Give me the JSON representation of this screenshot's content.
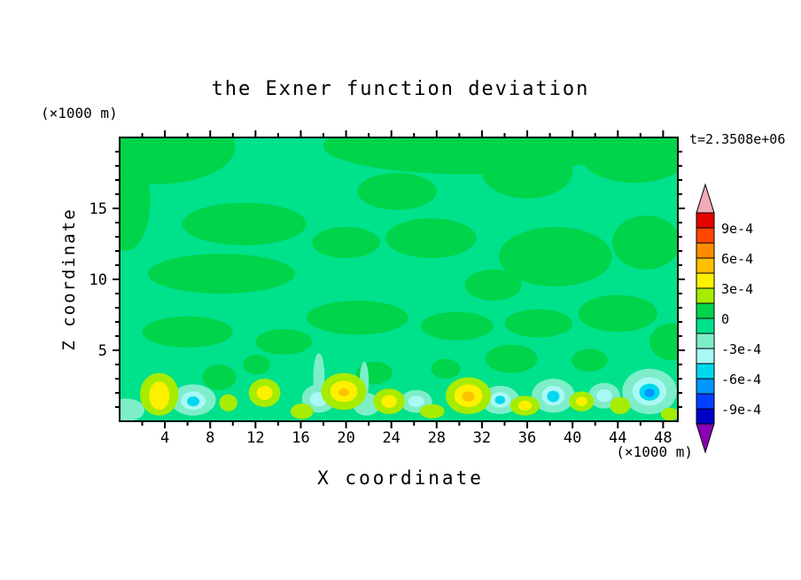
{
  "chart_data": {
    "type": "contour",
    "title": "the Exner function deviation",
    "xlabel": "X coordinate",
    "ylabel": "Z coordinate",
    "x_units": "(×1000 m)",
    "y_units": "(×1000 m)",
    "time_label": "t=2.3508e+06",
    "xlim": [
      0,
      49.3
    ],
    "ylim": [
      0,
      20
    ],
    "x_ticks": [
      4,
      8,
      12,
      16,
      20,
      24,
      28,
      32,
      36,
      40,
      44,
      48
    ],
    "x_minor_step": 2,
    "y_ticks": [
      5,
      10,
      15
    ],
    "y_minor_step": 1,
    "colorbar": {
      "labels": [
        "9e-4",
        "6e-4",
        "3e-4",
        "0",
        "-3e-4",
        "-6e-4",
        "-9e-4"
      ],
      "level_values": [
        0.0009,
        0.0006,
        0.0003,
        0,
        -0.0003,
        -0.0006,
        -0.0009
      ],
      "contour_interval": 0.00015,
      "colors": [
        "#f0aab9",
        "#e60000",
        "#ff4600",
        "#ff8c00",
        "#ffc000",
        "#fdf000",
        "#a6ec00",
        "#00d44a",
        "#00e18c",
        "#7deec9",
        "#aaf8f4",
        "#00d8f0",
        "#0096ff",
        "#0041ff",
        "#0000c8",
        "#8a00b4"
      ]
    },
    "palette": {
      "bg": "#00e18c",
      "green": "#00d44a",
      "chartreuse": "#a6ec00",
      "yellow": "#fdf000",
      "amber": "#ffc000",
      "aqua": "#7deec9",
      "pale_cyan": "#aaf8f4",
      "cyan": "#00d8f0",
      "azure": "#0096ff"
    },
    "background_color": "bg",
    "features": [
      {
        "x": 3.2,
        "y": 19.3,
        "rx": 7.0,
        "ry": 2.6,
        "color": "green"
      },
      {
        "x": 0.5,
        "y": 15.5,
        "rx": 2.2,
        "ry": 3.5,
        "color": "green"
      },
      {
        "x": 31,
        "y": 19.4,
        "rx": 13,
        "ry": 2.0,
        "color": "green"
      },
      {
        "x": 45.5,
        "y": 19.0,
        "rx": 5,
        "ry": 2.2,
        "color": "green"
      },
      {
        "x": 36,
        "y": 17.6,
        "rx": 4,
        "ry": 1.9,
        "color": "green"
      },
      {
        "x": 24.5,
        "y": 16.2,
        "rx": 3.5,
        "ry": 1.3,
        "color": "green"
      },
      {
        "x": 11,
        "y": 13.9,
        "rx": 5.5,
        "ry": 1.5,
        "color": "green"
      },
      {
        "x": 20,
        "y": 12.6,
        "rx": 3,
        "ry": 1.1,
        "color": "green"
      },
      {
        "x": 9,
        "y": 10.4,
        "rx": 6.5,
        "ry": 1.4,
        "color": "green"
      },
      {
        "x": 27.5,
        "y": 12.9,
        "rx": 4,
        "ry": 1.4,
        "color": "green"
      },
      {
        "x": 38.5,
        "y": 11.6,
        "rx": 5,
        "ry": 2.1,
        "color": "green"
      },
      {
        "x": 46.5,
        "y": 12.6,
        "rx": 3,
        "ry": 1.9,
        "color": "green"
      },
      {
        "x": 33,
        "y": 9.6,
        "rx": 2.5,
        "ry": 1.1,
        "color": "green"
      },
      {
        "x": 21,
        "y": 7.3,
        "rx": 4.5,
        "ry": 1.2,
        "color": "green"
      },
      {
        "x": 29.8,
        "y": 6.7,
        "rx": 3.2,
        "ry": 1.0,
        "color": "green"
      },
      {
        "x": 37,
        "y": 6.9,
        "rx": 3,
        "ry": 1.0,
        "color": "green"
      },
      {
        "x": 44,
        "y": 7.6,
        "rx": 3.5,
        "ry": 1.3,
        "color": "green"
      },
      {
        "x": 6,
        "y": 6.3,
        "rx": 4,
        "ry": 1.1,
        "color": "green"
      },
      {
        "x": 14.5,
        "y": 5.6,
        "rx": 2.5,
        "ry": 0.9,
        "color": "green"
      },
      {
        "x": 8.8,
        "y": 3.1,
        "rx": 1.5,
        "ry": 0.9,
        "color": "green"
      },
      {
        "x": 12.1,
        "y": 4.0,
        "rx": 1.2,
        "ry": 0.7,
        "color": "green"
      },
      {
        "x": 22.5,
        "y": 3.4,
        "rx": 1.6,
        "ry": 0.8,
        "color": "green"
      },
      {
        "x": 28.8,
        "y": 3.7,
        "rx": 1.3,
        "ry": 0.7,
        "color": "green"
      },
      {
        "x": 34.6,
        "y": 4.4,
        "rx": 2.3,
        "ry": 1.0,
        "color": "green"
      },
      {
        "x": 41.5,
        "y": 4.3,
        "rx": 1.6,
        "ry": 0.8,
        "color": "green"
      },
      {
        "x": 48.8,
        "y": 5.6,
        "rx": 2.0,
        "ry": 1.3,
        "color": "green"
      },
      {
        "x": 6.5,
        "y": 1.5,
        "rx": 2.0,
        "ry": 1.1,
        "color": "aqua"
      },
      {
        "x": 0.6,
        "y": 0.8,
        "rx": 1.6,
        "ry": 0.8,
        "color": "aqua"
      },
      {
        "x": 17.6,
        "y": 1.6,
        "rx": 1.5,
        "ry": 1.0,
        "color": "aqua"
      },
      {
        "x": 17.6,
        "y": 3.1,
        "rx": 0.5,
        "ry": 1.7,
        "color": "aqua"
      },
      {
        "x": 21.8,
        "y": 1.2,
        "rx": 1.2,
        "ry": 0.8,
        "color": "aqua"
      },
      {
        "x": 21.6,
        "y": 2.8,
        "rx": 0.4,
        "ry": 1.4,
        "color": "aqua"
      },
      {
        "x": 26.2,
        "y": 1.4,
        "rx": 1.4,
        "ry": 0.8,
        "color": "aqua"
      },
      {
        "x": 33.6,
        "y": 1.5,
        "rx": 1.7,
        "ry": 1.0,
        "color": "aqua"
      },
      {
        "x": 38.3,
        "y": 1.8,
        "rx": 1.9,
        "ry": 1.2,
        "color": "aqua"
      },
      {
        "x": 42.8,
        "y": 1.8,
        "rx": 1.4,
        "ry": 0.9,
        "color": "aqua"
      },
      {
        "x": 46.8,
        "y": 2.1,
        "rx": 2.4,
        "ry": 1.6,
        "color": "aqua"
      },
      {
        "x": 6.5,
        "y": 1.45,
        "rx": 1.1,
        "ry": 0.65,
        "color": "pale_cyan"
      },
      {
        "x": 17.6,
        "y": 1.55,
        "rx": 0.8,
        "ry": 0.5,
        "color": "pale_cyan"
      },
      {
        "x": 26.2,
        "y": 1.4,
        "rx": 0.7,
        "ry": 0.4,
        "color": "pale_cyan"
      },
      {
        "x": 33.6,
        "y": 1.5,
        "rx": 0.9,
        "ry": 0.55,
        "color": "pale_cyan"
      },
      {
        "x": 38.3,
        "y": 1.8,
        "rx": 1.0,
        "ry": 0.7,
        "color": "pale_cyan"
      },
      {
        "x": 42.8,
        "y": 1.8,
        "rx": 0.7,
        "ry": 0.45,
        "color": "pale_cyan"
      },
      {
        "x": 46.8,
        "y": 2.1,
        "rx": 1.5,
        "ry": 1.0,
        "color": "pale_cyan"
      },
      {
        "x": 6.5,
        "y": 1.4,
        "rx": 0.55,
        "ry": 0.35,
        "color": "cyan"
      },
      {
        "x": 33.6,
        "y": 1.5,
        "rx": 0.45,
        "ry": 0.3,
        "color": "cyan"
      },
      {
        "x": 38.3,
        "y": 1.75,
        "rx": 0.55,
        "ry": 0.4,
        "color": "cyan"
      },
      {
        "x": 46.8,
        "y": 2.05,
        "rx": 0.9,
        "ry": 0.6,
        "color": "cyan"
      },
      {
        "x": 46.8,
        "y": 2.0,
        "rx": 0.45,
        "ry": 0.3,
        "color": "azure"
      },
      {
        "x": 3.5,
        "y": 1.9,
        "rx": 1.7,
        "ry": 1.5,
        "color": "chartreuse"
      },
      {
        "x": 9.6,
        "y": 1.3,
        "rx": 0.8,
        "ry": 0.6,
        "color": "chartreuse"
      },
      {
        "x": 12.8,
        "y": 2.0,
        "rx": 1.4,
        "ry": 1.0,
        "color": "chartreuse"
      },
      {
        "x": 16.1,
        "y": 0.7,
        "rx": 1.0,
        "ry": 0.55,
        "color": "chartreuse"
      },
      {
        "x": 19.8,
        "y": 2.1,
        "rx": 2.0,
        "ry": 1.3,
        "color": "chartreuse"
      },
      {
        "x": 23.8,
        "y": 1.4,
        "rx": 1.4,
        "ry": 0.9,
        "color": "chartreuse"
      },
      {
        "x": 27.6,
        "y": 0.7,
        "rx": 1.1,
        "ry": 0.5,
        "color": "chartreuse"
      },
      {
        "x": 30.8,
        "y": 1.8,
        "rx": 2.0,
        "ry": 1.3,
        "color": "chartreuse"
      },
      {
        "x": 35.8,
        "y": 1.1,
        "rx": 1.3,
        "ry": 0.7,
        "color": "chartreuse"
      },
      {
        "x": 40.8,
        "y": 1.4,
        "rx": 1.1,
        "ry": 0.7,
        "color": "chartreuse"
      },
      {
        "x": 44.2,
        "y": 1.1,
        "rx": 0.9,
        "ry": 0.6,
        "color": "chartreuse"
      },
      {
        "x": 48.6,
        "y": 0.5,
        "rx": 0.8,
        "ry": 0.45,
        "color": "chartreuse"
      },
      {
        "x": 3.5,
        "y": 1.8,
        "rx": 0.9,
        "ry": 1.0,
        "color": "yellow"
      },
      {
        "x": 12.8,
        "y": 2.0,
        "rx": 0.7,
        "ry": 0.5,
        "color": "yellow"
      },
      {
        "x": 19.8,
        "y": 2.1,
        "rx": 1.2,
        "ry": 0.75,
        "color": "yellow"
      },
      {
        "x": 23.8,
        "y": 1.4,
        "rx": 0.7,
        "ry": 0.45,
        "color": "yellow"
      },
      {
        "x": 30.8,
        "y": 1.8,
        "rx": 1.25,
        "ry": 0.8,
        "color": "yellow"
      },
      {
        "x": 35.8,
        "y": 1.1,
        "rx": 0.6,
        "ry": 0.35,
        "color": "yellow"
      },
      {
        "x": 40.8,
        "y": 1.4,
        "rx": 0.5,
        "ry": 0.33,
        "color": "yellow"
      },
      {
        "x": 30.8,
        "y": 1.75,
        "rx": 0.55,
        "ry": 0.35,
        "color": "amber"
      },
      {
        "x": 19.8,
        "y": 2.05,
        "rx": 0.45,
        "ry": 0.28,
        "color": "amber"
      }
    ]
  }
}
